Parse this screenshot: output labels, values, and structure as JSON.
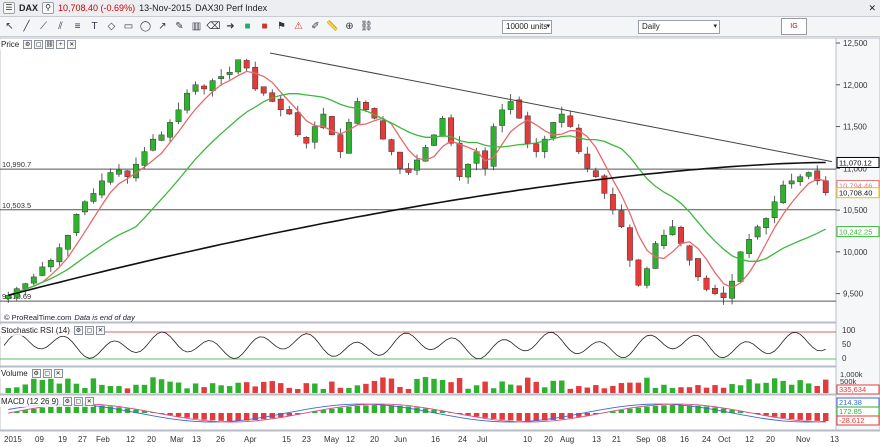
{
  "window": {
    "symbol": "DAX",
    "price_change": "10,708.40 (-0.69%)",
    "date": "13-Nov-2015",
    "name": "DAX30 Perf Index"
  },
  "toolbar": {
    "units_value": "10000 units",
    "period_value": "Daily",
    "tool_icons": [
      "pointer-icon",
      "line-icon",
      "ray-icon",
      "channel-icon",
      "fibonacci-icon",
      "text-icon",
      "shape-icon",
      "rectangle-icon",
      "ellipse-icon",
      "arrow-icon",
      "pen-icon",
      "trash-icon",
      "bin-icon",
      "right-arrow-icon",
      "buy-icon",
      "sell-icon",
      "flag-icon",
      "alert-icon",
      "drawing-icon",
      "ruler-icon",
      "zoom-icon",
      "link-icon"
    ]
  },
  "panes": {
    "price": {
      "label": "Price"
    },
    "stoch": {
      "label": "Stochastic RSI (14)"
    },
    "volume": {
      "label": "Volume"
    },
    "macd": {
      "label": "MACD (12 26 9)"
    }
  },
  "source_text": "© ProRealTime.com",
  "source_note": "Data is end of day",
  "price_axis": {
    "ticks": [
      "12,500",
      "12,000",
      "11,500",
      "11,000",
      "10,500",
      "10,000",
      "9,500"
    ],
    "tick_values": [
      12500,
      12000,
      11500,
      11000,
      10500,
      10000,
      9500
    ],
    "y_min": 9280,
    "y_max": 12560
  },
  "levels": [
    {
      "label": "10,990.7",
      "value": 10990.7
    },
    {
      "label": "10,503.5",
      "value": 10503.5
    },
    {
      "label": "9,410.69",
      "value": 9410.69
    }
  ],
  "right_tags": [
    {
      "label": "11,070.12",
      "value": 11070.12,
      "color": "#000000"
    },
    {
      "label": "10,794.46",
      "value": 10794.46,
      "color": "#e87878"
    },
    {
      "label": "10,708.40",
      "value": 10708.4,
      "color": "#f0c000"
    },
    {
      "label": "10,242.25",
      "value": 10242.25,
      "color": "#38b838"
    }
  ],
  "stoch_axis": {
    "ticks": [
      "100",
      "50",
      "0"
    ]
  },
  "volume_axis": {
    "ticks": [
      "1,000k",
      "500k"
    ],
    "tag": "335,634"
  },
  "macd_axis": {
    "tags": [
      "214.38",
      "172.85",
      "-28.612"
    ]
  },
  "x_axis": {
    "labels": [
      "2015",
      "09",
      "19",
      "27",
      "Feb",
      "12",
      "20",
      "Mar",
      "13",
      "26",
      "Apr",
      "15",
      "23",
      "May",
      "12",
      "20",
      "Jun",
      "16",
      "24",
      "Jul",
      "10",
      "20",
      "Aug",
      "13",
      "21",
      "Sep",
      "08",
      "16",
      "24",
      "Oct",
      "12",
      "20",
      "Nov",
      "13"
    ]
  },
  "chart_data": {
    "type": "candlestick",
    "title": "DAX30 Perf Index",
    "ylim": [
      9280,
      12560
    ],
    "close_series": [
      9480,
      9560,
      9620,
      9700,
      9820,
      9900,
      10050,
      10200,
      10450,
      10600,
      10700,
      10850,
      10950,
      10980,
      10900,
      11050,
      11200,
      11350,
      11400,
      11550,
      11700,
      11900,
      12000,
      11950,
      12050,
      12100,
      12150,
      12300,
      12200,
      11950,
      11900,
      11800,
      11700,
      11650,
      11400,
      11300,
      11500,
      11650,
      11400,
      11200,
      11550,
      11800,
      11700,
      11600,
      11350,
      11200,
      11000,
      10950,
      11100,
      11250,
      11400,
      11600,
      11300,
      10900,
      11050,
      11200,
      11000,
      11500,
      11700,
      11800,
      11600,
      11300,
      11200,
      11350,
      11550,
      11650,
      11500,
      11200,
      11000,
      10900,
      10700,
      10500,
      10300,
      9900,
      9600,
      9800,
      10100,
      10200,
      10300,
      10100,
      9900,
      9700,
      9550,
      9500,
      9450,
      9650,
      10000,
      10150,
      10300,
      10400,
      10600,
      10800,
      10850,
      10900,
      10950,
      10850,
      10708
    ],
    "ma_red_label": "10,794.46",
    "ma_green_label": "10,242.25",
    "ma_black_label": "11,070.12",
    "trendline": "resistance"
  }
}
